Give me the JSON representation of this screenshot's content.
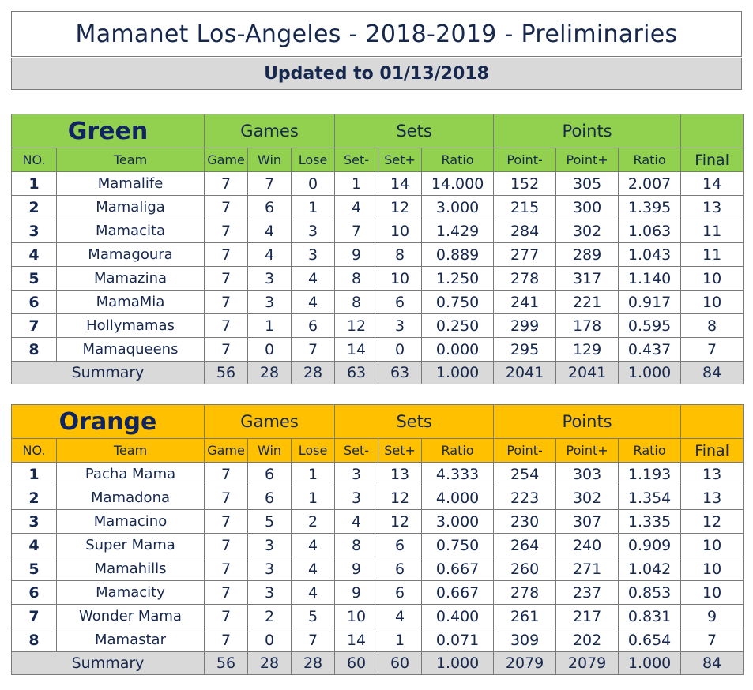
{
  "title": "Mamanet Los-Angeles - 2018-2019 - Preliminaries",
  "updated": "Updated to 01/13/2018",
  "headers": {
    "games": "Games",
    "sets": "Sets",
    "points": "Points",
    "cols": [
      "NO.",
      "Team",
      "Game",
      "Win",
      "Lose",
      "Set-",
      "Set+",
      "Ratio",
      "Point-",
      "Point+",
      "Ratio",
      "Final"
    ]
  },
  "groups": [
    {
      "name": "Green",
      "color": "#92d050",
      "rows": [
        [
          "1",
          "Mamalife",
          "7",
          "7",
          "0",
          "1",
          "14",
          "14.000",
          "152",
          "305",
          "2.007",
          "14"
        ],
        [
          "2",
          "Mamaliga",
          "7",
          "6",
          "1",
          "4",
          "12",
          "3.000",
          "215",
          "300",
          "1.395",
          "13"
        ],
        [
          "3",
          "Mamacita",
          "7",
          "4",
          "3",
          "7",
          "10",
          "1.429",
          "284",
          "302",
          "1.063",
          "11"
        ],
        [
          "4",
          "Mamagoura",
          "7",
          "4",
          "3",
          "9",
          "8",
          "0.889",
          "277",
          "289",
          "1.043",
          "11"
        ],
        [
          "5",
          "Mamazina",
          "7",
          "3",
          "4",
          "8",
          "10",
          "1.250",
          "278",
          "317",
          "1.140",
          "10"
        ],
        [
          "6",
          "MamaMia",
          "7",
          "3",
          "4",
          "8",
          "6",
          "0.750",
          "241",
          "221",
          "0.917",
          "10"
        ],
        [
          "7",
          "Hollymamas",
          "7",
          "1",
          "6",
          "12",
          "3",
          "0.250",
          "299",
          "178",
          "0.595",
          "8"
        ],
        [
          "8",
          "Mamaqueens",
          "7",
          "0",
          "7",
          "14",
          "0",
          "0.000",
          "295",
          "129",
          "0.437",
          "7"
        ]
      ],
      "summary": [
        "Summary",
        "56",
        "28",
        "28",
        "63",
        "63",
        "1.000",
        "2041",
        "2041",
        "1.000",
        "84"
      ]
    },
    {
      "name": "Orange",
      "color": "#ffc000",
      "rows": [
        [
          "1",
          "Pacha Mama",
          "7",
          "6",
          "1",
          "3",
          "13",
          "4.333",
          "254",
          "303",
          "1.193",
          "13"
        ],
        [
          "2",
          "Mamadona",
          "7",
          "6",
          "1",
          "3",
          "12",
          "4.000",
          "223",
          "302",
          "1.354",
          "13"
        ],
        [
          "3",
          "Mamacino",
          "7",
          "5",
          "2",
          "4",
          "12",
          "3.000",
          "230",
          "307",
          "1.335",
          "12"
        ],
        [
          "4",
          "Super Mama",
          "7",
          "3",
          "4",
          "8",
          "6",
          "0.750",
          "264",
          "240",
          "0.909",
          "10"
        ],
        [
          "5",
          "Mamahills",
          "7",
          "3",
          "4",
          "9",
          "6",
          "0.667",
          "260",
          "271",
          "1.042",
          "10"
        ],
        [
          "6",
          "Mamacity",
          "7",
          "3",
          "4",
          "9",
          "6",
          "0.667",
          "278",
          "237",
          "0.853",
          "10"
        ],
        [
          "7",
          "Wonder Mama",
          "7",
          "2",
          "5",
          "10",
          "4",
          "0.400",
          "261",
          "217",
          "0.831",
          "9"
        ],
        [
          "8",
          "Mamastar",
          "7",
          "0",
          "7",
          "14",
          "1",
          "0.071",
          "309",
          "202",
          "0.654",
          "7"
        ]
      ],
      "summary": [
        "Summary",
        "56",
        "28",
        "28",
        "60",
        "60",
        "1.000",
        "2079",
        "2079",
        "1.000",
        "84"
      ]
    }
  ]
}
